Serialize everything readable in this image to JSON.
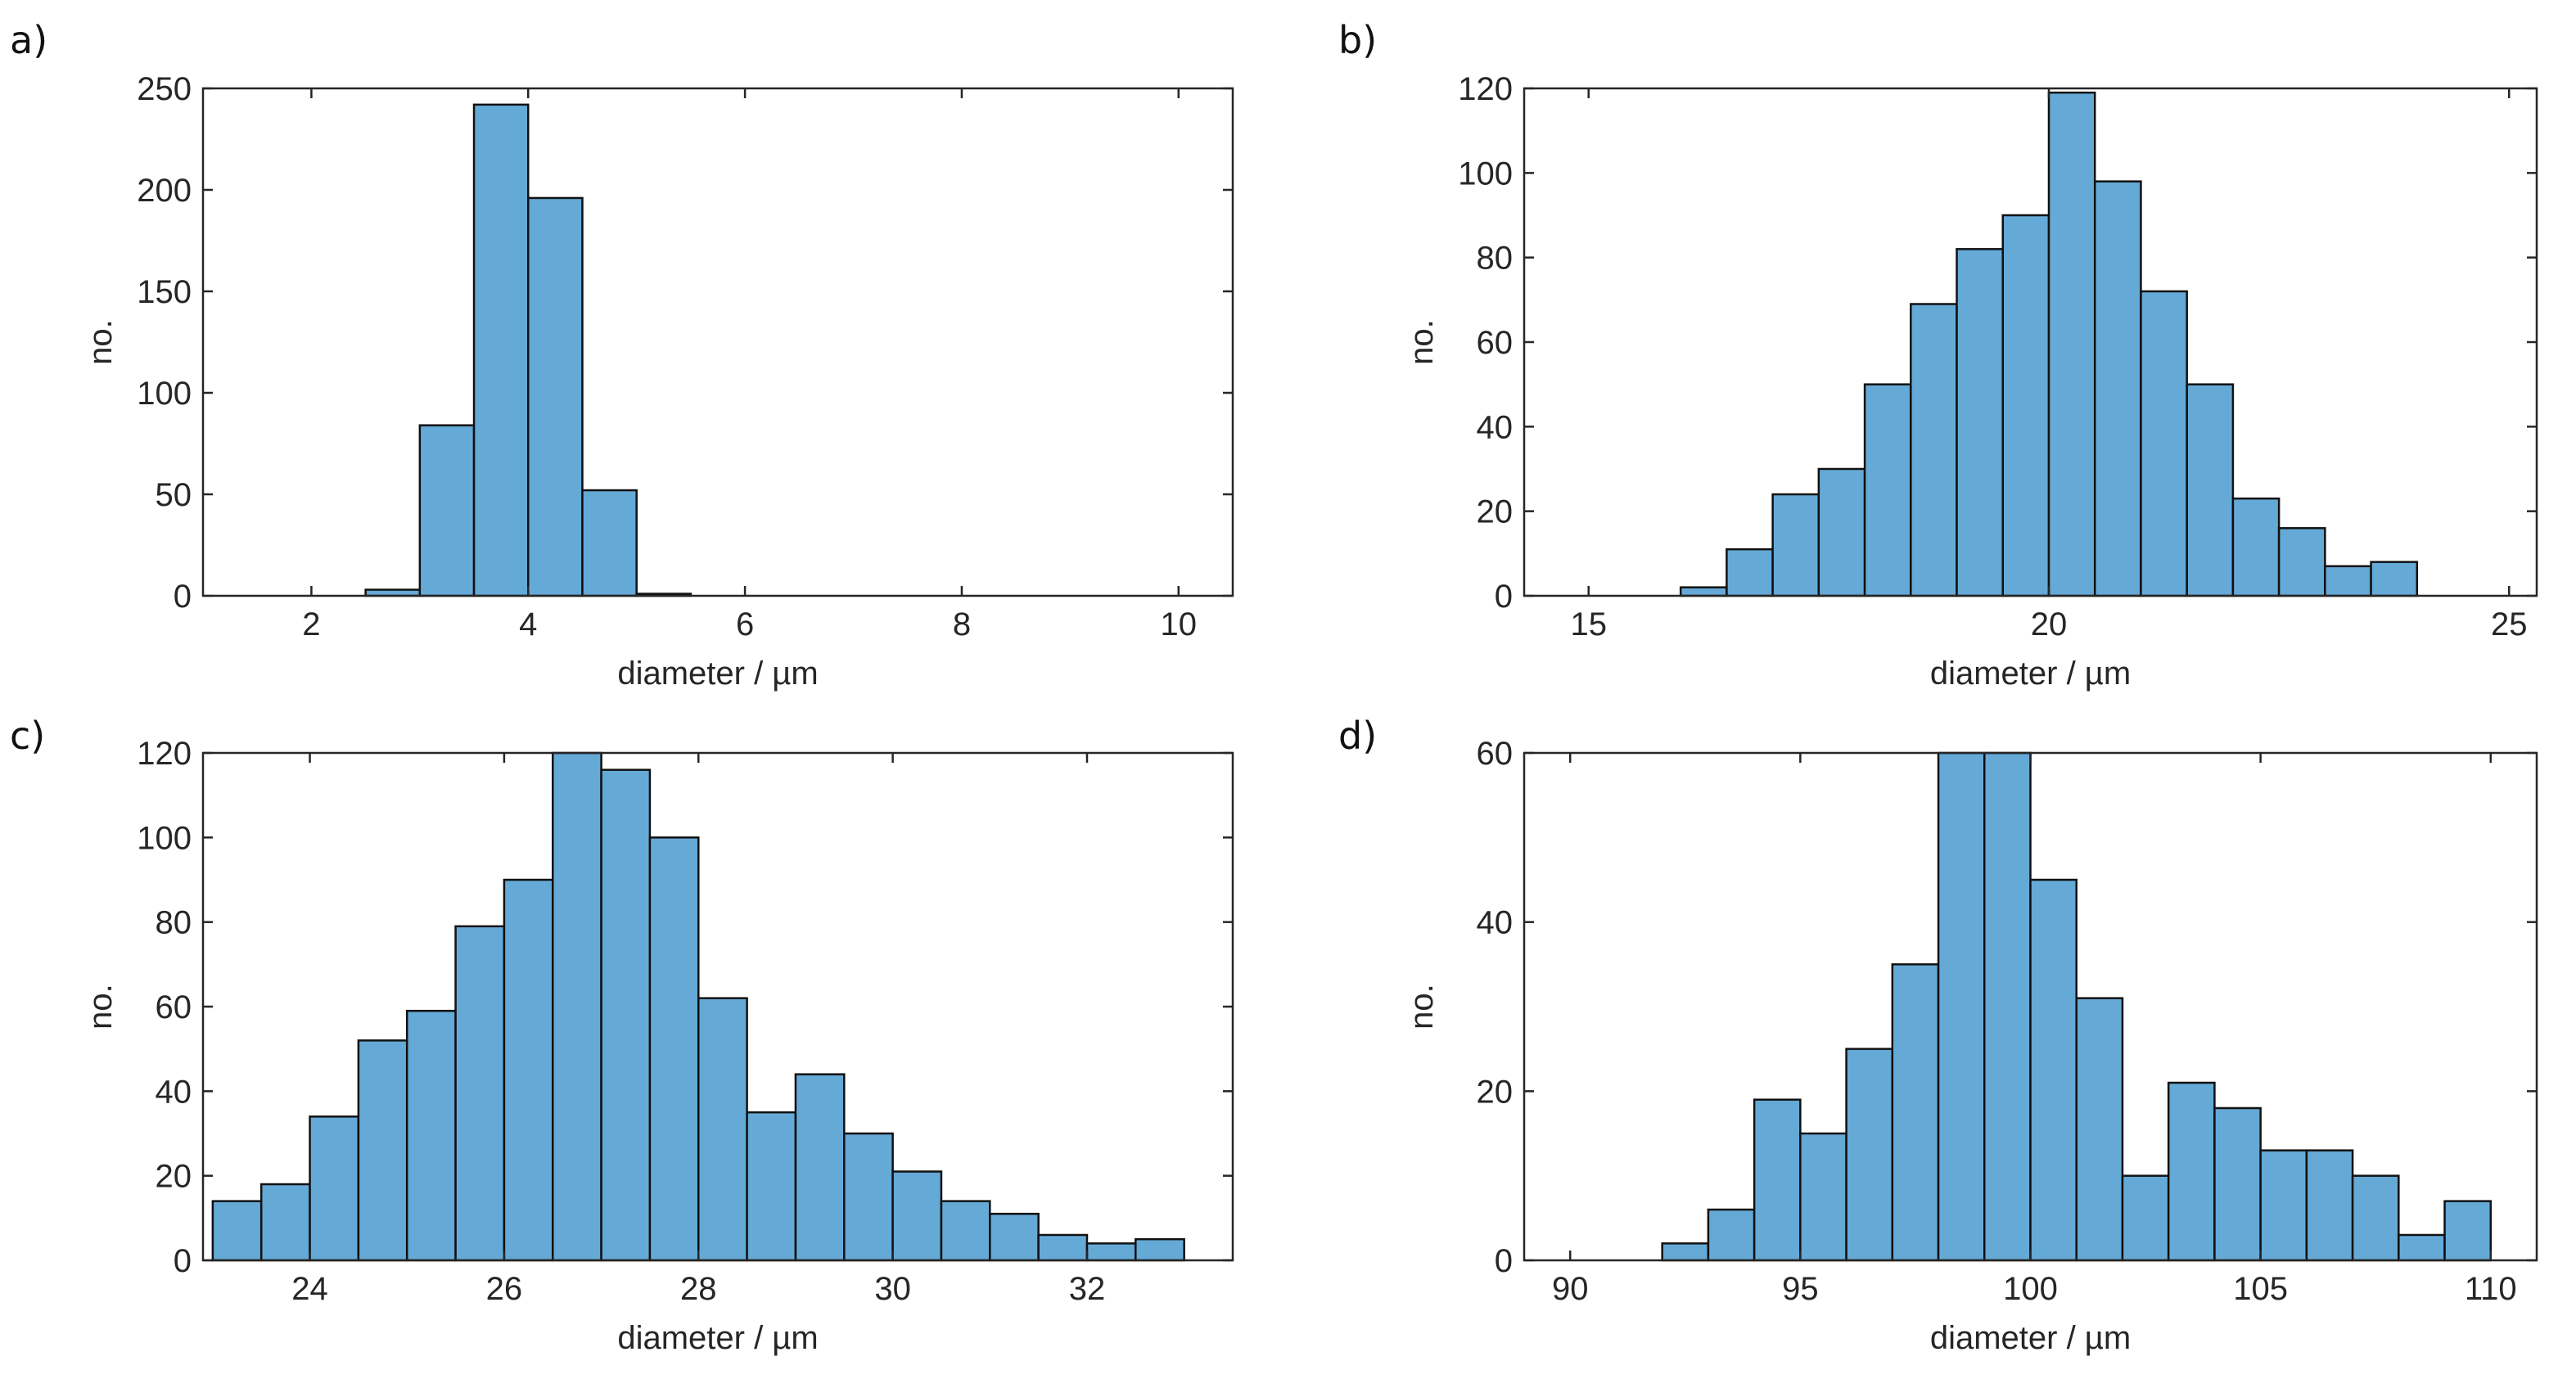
{
  "figure": {
    "bar_color": "#65A9D7",
    "edge_color": "#111111",
    "axis_color": "#262626"
  },
  "chart_data": [
    {
      "id": "a",
      "panel_label": "a)",
      "type": "bar",
      "xlabel": "diameter / µm",
      "ylabel": "no.",
      "xlim": [
        1,
        10.5
      ],
      "ylim": [
        0,
        250
      ],
      "xticks": [
        2,
        4,
        6,
        8,
        10
      ],
      "yticks": [
        0,
        50,
        100,
        150,
        200,
        250
      ],
      "bin_width": 0.5,
      "bins": [
        {
          "x0": 2.5,
          "value": 3
        },
        {
          "x0": 3.0,
          "value": 84
        },
        {
          "x0": 3.5,
          "value": 242
        },
        {
          "x0": 4.0,
          "value": 196
        },
        {
          "x0": 4.5,
          "value": 52
        },
        {
          "x0": 5.0,
          "value": 1
        }
      ]
    },
    {
      "id": "b",
      "panel_label": "b)",
      "type": "bar",
      "xlabel": "diameter / µm",
      "ylabel": "no.",
      "xlim": [
        14.3,
        25.3
      ],
      "ylim": [
        0,
        120
      ],
      "xticks": [
        15,
        20,
        25
      ],
      "yticks": [
        0,
        20,
        40,
        60,
        80,
        100,
        120
      ],
      "bin_width": 0.5,
      "bins": [
        {
          "x0": 16.0,
          "value": 2
        },
        {
          "x0": 16.5,
          "value": 11
        },
        {
          "x0": 17.0,
          "value": 24
        },
        {
          "x0": 17.5,
          "value": 30
        },
        {
          "x0": 18.0,
          "value": 50
        },
        {
          "x0": 18.5,
          "value": 69
        },
        {
          "x0": 19.0,
          "value": 82
        },
        {
          "x0": 19.5,
          "value": 90
        },
        {
          "x0": 20.0,
          "value": 119
        },
        {
          "x0": 20.5,
          "value": 98
        },
        {
          "x0": 21.0,
          "value": 72
        },
        {
          "x0": 21.5,
          "value": 50
        },
        {
          "x0": 22.0,
          "value": 23
        },
        {
          "x0": 22.5,
          "value": 16
        },
        {
          "x0": 23.0,
          "value": 7
        },
        {
          "x0": 23.5,
          "value": 8
        }
      ]
    },
    {
      "id": "c",
      "panel_label": "c)",
      "type": "bar",
      "xlabel": "diameter / µm",
      "ylabel": "no.",
      "xlim": [
        22.9,
        33.5
      ],
      "ylim": [
        0,
        120
      ],
      "xticks": [
        24,
        26,
        28,
        30,
        32
      ],
      "yticks": [
        0,
        20,
        40,
        60,
        80,
        100,
        120
      ],
      "bin_width": 0.5,
      "bins": [
        {
          "x0": 23.0,
          "value": 14
        },
        {
          "x0": 23.5,
          "value": 18
        },
        {
          "x0": 24.0,
          "value": 34
        },
        {
          "x0": 24.5,
          "value": 52
        },
        {
          "x0": 25.0,
          "value": 59
        },
        {
          "x0": 25.5,
          "value": 79
        },
        {
          "x0": 26.0,
          "value": 90
        },
        {
          "x0": 26.5,
          "value": 120
        },
        {
          "x0": 27.0,
          "value": 116
        },
        {
          "x0": 27.5,
          "value": 100
        },
        {
          "x0": 28.0,
          "value": 62
        },
        {
          "x0": 28.5,
          "value": 35
        },
        {
          "x0": 29.0,
          "value": 44
        },
        {
          "x0": 29.5,
          "value": 30
        },
        {
          "x0": 30.0,
          "value": 21
        },
        {
          "x0": 30.5,
          "value": 14
        },
        {
          "x0": 31.0,
          "value": 11
        },
        {
          "x0": 31.5,
          "value": 6
        },
        {
          "x0": 32.0,
          "value": 4
        },
        {
          "x0": 32.5,
          "value": 5
        }
      ]
    },
    {
      "id": "d",
      "panel_label": "d)",
      "type": "bar",
      "xlabel": "diameter / µm",
      "ylabel": "no.",
      "xlim": [
        89,
        111
      ],
      "ylim": [
        0,
        60
      ],
      "xticks": [
        90,
        95,
        100,
        105,
        110
      ],
      "yticks": [
        0,
        20,
        40,
        60
      ],
      "bin_width": 1,
      "bins": [
        {
          "x0": 92,
          "value": 2
        },
        {
          "x0": 93,
          "value": 6
        },
        {
          "x0": 94,
          "value": 19
        },
        {
          "x0": 95,
          "value": 15
        },
        {
          "x0": 96,
          "value": 25
        },
        {
          "x0": 97,
          "value": 35
        },
        {
          "x0": 98,
          "value": 60
        },
        {
          "x0": 99,
          "value": 60
        },
        {
          "x0": 100,
          "value": 45
        },
        {
          "x0": 101,
          "value": 31
        },
        {
          "x0": 102,
          "value": 10
        },
        {
          "x0": 103,
          "value": 21
        },
        {
          "x0": 104,
          "value": 18
        },
        {
          "x0": 105,
          "value": 13
        },
        {
          "x0": 106,
          "value": 13
        },
        {
          "x0": 107,
          "value": 10
        },
        {
          "x0": 108,
          "value": 3
        },
        {
          "x0": 109,
          "value": 7
        }
      ]
    }
  ]
}
